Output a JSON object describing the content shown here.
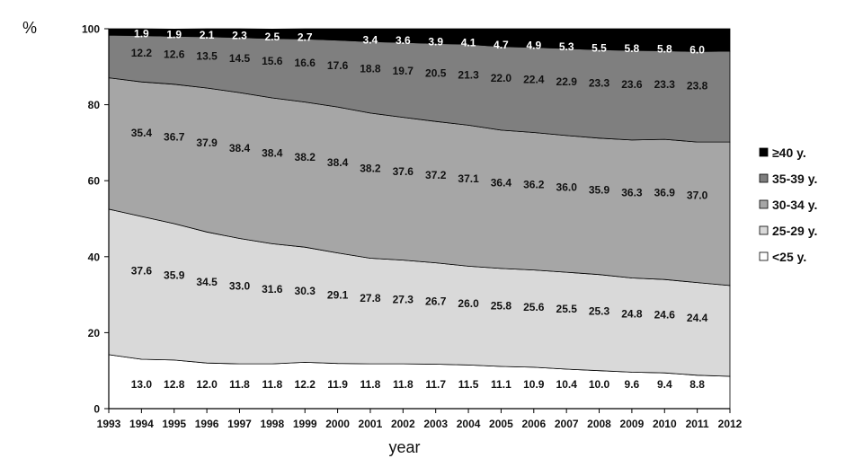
{
  "chart_data": {
    "type": "area",
    "stacked": true,
    "title": "",
    "xlabel": "year",
    "ylabel": "%",
    "ylim": [
      0,
      100
    ],
    "yticks": [
      0,
      20,
      40,
      60,
      80,
      100
    ],
    "grid": false,
    "legend_position": "right",
    "x": [
      "1993",
      "1994",
      "1995",
      "1996",
      "1997",
      "1998",
      "1999",
      "2000",
      "2001",
      "2002",
      "2003",
      "2004",
      "2005",
      "2006",
      "2007",
      "2008",
      "2009",
      "2010",
      "2011",
      "2012"
    ],
    "series": [
      {
        "name": "<25 y.",
        "color": "#ffffff",
        "values": [
          14.2,
          13.0,
          12.8,
          12.0,
          11.8,
          11.8,
          12.2,
          11.9,
          11.8,
          11.8,
          11.7,
          11.5,
          11.1,
          10.9,
          10.4,
          10.0,
          9.6,
          9.4,
          8.8,
          8.5
        ],
        "labels": [
          null,
          "13.0",
          "12.8",
          "12.0",
          "11.8",
          "11.8",
          "12.2",
          "11.9",
          "11.8",
          "11.8",
          "11.7",
          "11.5",
          "11.1",
          "10.9",
          "10.4",
          "10.0",
          "9.6",
          "9.4",
          "8.8",
          null
        ]
      },
      {
        "name": "25-29 y.",
        "color": "#d9d9d9",
        "values": [
          38.3,
          37.6,
          35.9,
          34.5,
          33.0,
          31.6,
          30.3,
          29.1,
          27.8,
          27.3,
          26.7,
          26.0,
          25.8,
          25.6,
          25.5,
          25.3,
          24.8,
          24.6,
          24.4,
          23.9
        ],
        "labels": [
          null,
          "37.6",
          "35.9",
          "34.5",
          "33.0",
          "31.6",
          "30.3",
          "29.1",
          "27.8",
          "27.3",
          "26.7",
          "26.0",
          "25.8",
          "25.6",
          "25.5",
          "25.3",
          "24.8",
          "24.6",
          "24.4",
          null
        ]
      },
      {
        "name": "30-34 y.",
        "color": "#a6a6a6",
        "values": [
          34.6,
          35.4,
          36.7,
          37.9,
          38.4,
          38.4,
          38.2,
          38.4,
          38.2,
          37.6,
          37.2,
          37.1,
          36.4,
          36.2,
          36.0,
          35.9,
          36.3,
          36.9,
          37.0,
          37.8
        ],
        "labels": [
          null,
          "35.4",
          "36.7",
          "37.9",
          "38.4",
          "38.4",
          "38.2",
          "38.4",
          "38.2",
          "37.6",
          "37.2",
          "37.1",
          "36.4",
          "36.2",
          "36.0",
          "35.9",
          "36.3",
          "36.9",
          "37.0",
          null
        ]
      },
      {
        "name": "35-39 y.",
        "color": "#7f7f7f",
        "values": [
          11.2,
          12.2,
          12.6,
          13.5,
          14.5,
          15.6,
          16.6,
          17.6,
          18.8,
          19.7,
          20.5,
          21.3,
          22.0,
          22.4,
          22.9,
          23.3,
          23.6,
          23.3,
          23.8,
          23.9
        ],
        "labels": [
          null,
          "12.2",
          "12.6",
          "13.5",
          "14.5",
          "15.6",
          "16.6",
          "17.6",
          "18.8",
          "19.7",
          "20.5",
          "21.3",
          "22.0",
          "22.4",
          "22.9",
          "23.3",
          "23.6",
          "23.3",
          "23.8",
          null
        ]
      },
      {
        "name": "≥40 y.",
        "color": "#000000",
        "values": [
          1.7,
          1.9,
          1.9,
          2.1,
          2.3,
          2.5,
          2.7,
          3.0,
          3.4,
          3.6,
          3.9,
          4.1,
          4.7,
          4.9,
          5.3,
          5.5,
          5.8,
          5.8,
          6.0,
          6.0
        ],
        "labels": [
          null,
          "1.9",
          "1.9",
          "2.1",
          "2.3",
          "2.5",
          "2.7",
          null,
          "3.4",
          "3.6",
          "3.9",
          "4.1",
          "4.7",
          "4.9",
          "5.3",
          "5.5",
          "5.8",
          "5.8",
          "6.0",
          null
        ]
      }
    ]
  }
}
